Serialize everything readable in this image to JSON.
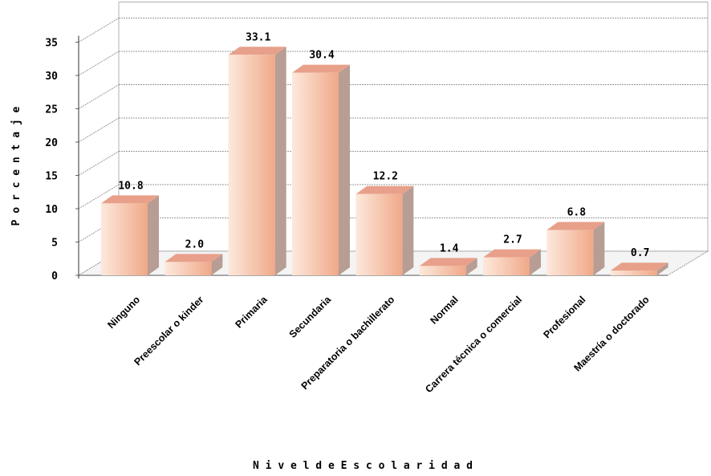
{
  "chart_data": {
    "type": "bar",
    "xlabel": "N i v e l  d e  E s c o l a r i d a d",
    "ylabel": "P o r c e n t a j e",
    "ylim": [
      0,
      35
    ],
    "yticks": [
      0,
      5,
      10,
      15,
      20,
      25,
      30,
      35
    ],
    "categories": [
      "Ninguno",
      "Preescolar o kinder",
      "Primaria",
      "Secundaria",
      "Preparatoria o bachillerato",
      "Normal",
      "Carrera técnica o comercial",
      "Profesional",
      "Maestría o doctorado"
    ],
    "values": [
      10.8,
      2.0,
      33.1,
      30.4,
      12.2,
      1.4,
      2.7,
      6.8,
      0.7
    ],
    "data_labels": [
      "10.8",
      "2.0",
      "33.1",
      "30.4",
      "12.2",
      "1.4",
      "2.7",
      "6.8",
      "0.7"
    ],
    "grid": true,
    "legend": "none",
    "colors": {
      "bar_front_light": "#fde9dc",
      "bar_front_dark": "#f0a888",
      "bar_top": "#e8a08a",
      "bar_side": "#b79d94",
      "grid": "#999999"
    }
  }
}
